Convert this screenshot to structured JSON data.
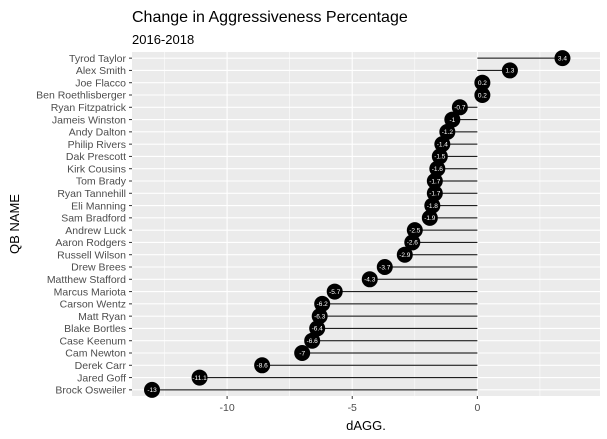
{
  "chart_data": {
    "type": "lollipop",
    "title": "Change in Aggressiveness Percentage",
    "subtitle": "2016-2018",
    "xlabel": "dAGG.",
    "ylabel": "QB NAME",
    "xlim": [
      -13.8,
      4.9
    ],
    "x_ticks": [
      -10,
      -5,
      0
    ],
    "grid": true,
    "colors": {
      "panel": "#ebebeb",
      "grid": "#ffffff",
      "point": "#000000",
      "segment": "#000000",
      "label": "#ffffff"
    },
    "categories": [
      "Tyrod Taylor",
      "Alex Smith",
      "Joe Flacco",
      "Ben Roethlisberger",
      "Ryan Fitzpatrick",
      "Jameis Winston",
      "Andy Dalton",
      "Philip Rivers",
      "Dak Prescott",
      "Kirk Cousins",
      "Tom Brady",
      "Ryan Tannehill",
      "Eli Manning",
      "Sam Bradford",
      "Andrew Luck",
      "Aaron Rodgers",
      "Russell Wilson",
      "Drew Brees",
      "Matthew Stafford",
      "Marcus Mariota",
      "Carson Wentz",
      "Matt Ryan",
      "Blake Bortles",
      "Case Keenum",
      "Cam Newton",
      "Derek Carr",
      "Jared Goff",
      "Brock Osweiler"
    ],
    "values": [
      3.4,
      1.3,
      0.2,
      0.2,
      -0.7,
      -1,
      -1.2,
      -1.4,
      -1.5,
      -1.6,
      -1.7,
      -1.7,
      -1.8,
      -1.9,
      -2.5,
      -2.6,
      -2.9,
      -3.7,
      -4.3,
      -5.7,
      -6.2,
      -6.3,
      -6.4,
      -6.6,
      -7,
      -8.6,
      -11.1,
      -13
    ]
  }
}
